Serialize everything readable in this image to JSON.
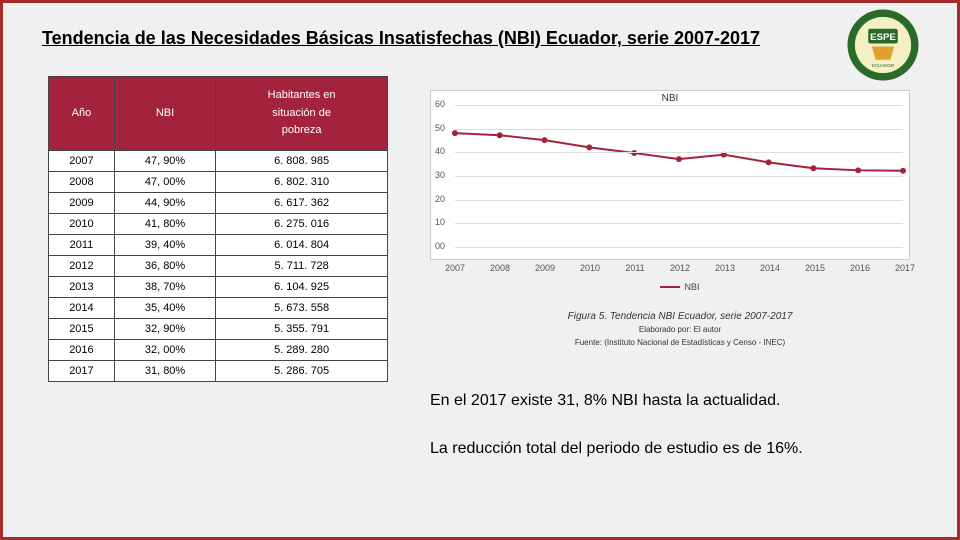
{
  "title": "Tendencia de las Necesidades Básicas Insatisfechas (NBI) Ecuador, serie 2007-2017",
  "table": {
    "header_bg": "#a3233d",
    "col1": "Año",
    "col2": "NBI",
    "col3_l1": "Habitantes en",
    "col3_l2": "situación de",
    "col3_l3": "pobreza",
    "rows": [
      {
        "y": "2007",
        "n": "47, 90%",
        "h": "6. 808. 985"
      },
      {
        "y": "2008",
        "n": "47, 00%",
        "h": "6. 802. 310"
      },
      {
        "y": "2009",
        "n": "44, 90%",
        "h": "6. 617. 362"
      },
      {
        "y": "2010",
        "n": "41, 80%",
        "h": "6. 275. 016"
      },
      {
        "y": "2011",
        "n": "39, 40%",
        "h": "6. 014. 804"
      },
      {
        "y": "2012",
        "n": "36, 80%",
        "h": "5. 711. 728"
      },
      {
        "y": "2013",
        "n": "38, 70%",
        "h": "6. 104. 925"
      },
      {
        "y": "2014",
        "n": "35, 40%",
        "h": "5. 673. 558"
      },
      {
        "y": "2015",
        "n": "32, 90%",
        "h": "5. 355. 791"
      },
      {
        "y": "2016",
        "n": "32, 00%",
        "h": "5. 289. 280"
      },
      {
        "y": "2017",
        "n": "31, 80%",
        "h": "5. 286. 705"
      }
    ]
  },
  "chart": {
    "type": "line",
    "title": "NBI",
    "legend_label": "NBI",
    "categories": [
      "2007",
      "2008",
      "2009",
      "2010",
      "2011",
      "2012",
      "2013",
      "2014",
      "2015",
      "2016",
      "2017"
    ],
    "values": [
      47.9,
      47.0,
      44.9,
      41.8,
      39.4,
      36.8,
      38.7,
      35.4,
      32.9,
      32.0,
      31.8
    ],
    "line_color": "#a3233d",
    "grid_color": "#dddddd",
    "background_color": "#ffffff",
    "marker_style": "circle",
    "marker_size": 3,
    "line_width": 2,
    "ylim": [
      0,
      60
    ],
    "ytick_step": 10,
    "yticks": [
      "00",
      "10",
      "20",
      "30",
      "40",
      "50",
      "60"
    ],
    "title_fontsize": 10,
    "label_fontsize": 9
  },
  "caption": {
    "title": "Figura 5. Tendencia NBI Ecuador, serie 2007-2017",
    "sub1": "Elaborado por: El autor",
    "sub2": "Fuente: (Instituto Nacional de Estadísticas y Censo - INEC)"
  },
  "body_text1": "En el 2017 existe 31, 8% NBI hasta la actualidad.",
  "body_text2": "La reducción total del periodo de estudio es de 16%.",
  "logo": {
    "outer_ring": "#2a6b2a",
    "inner_bg": "#f5f0c4",
    "badge": "#e0a030",
    "text": "ESPE"
  }
}
